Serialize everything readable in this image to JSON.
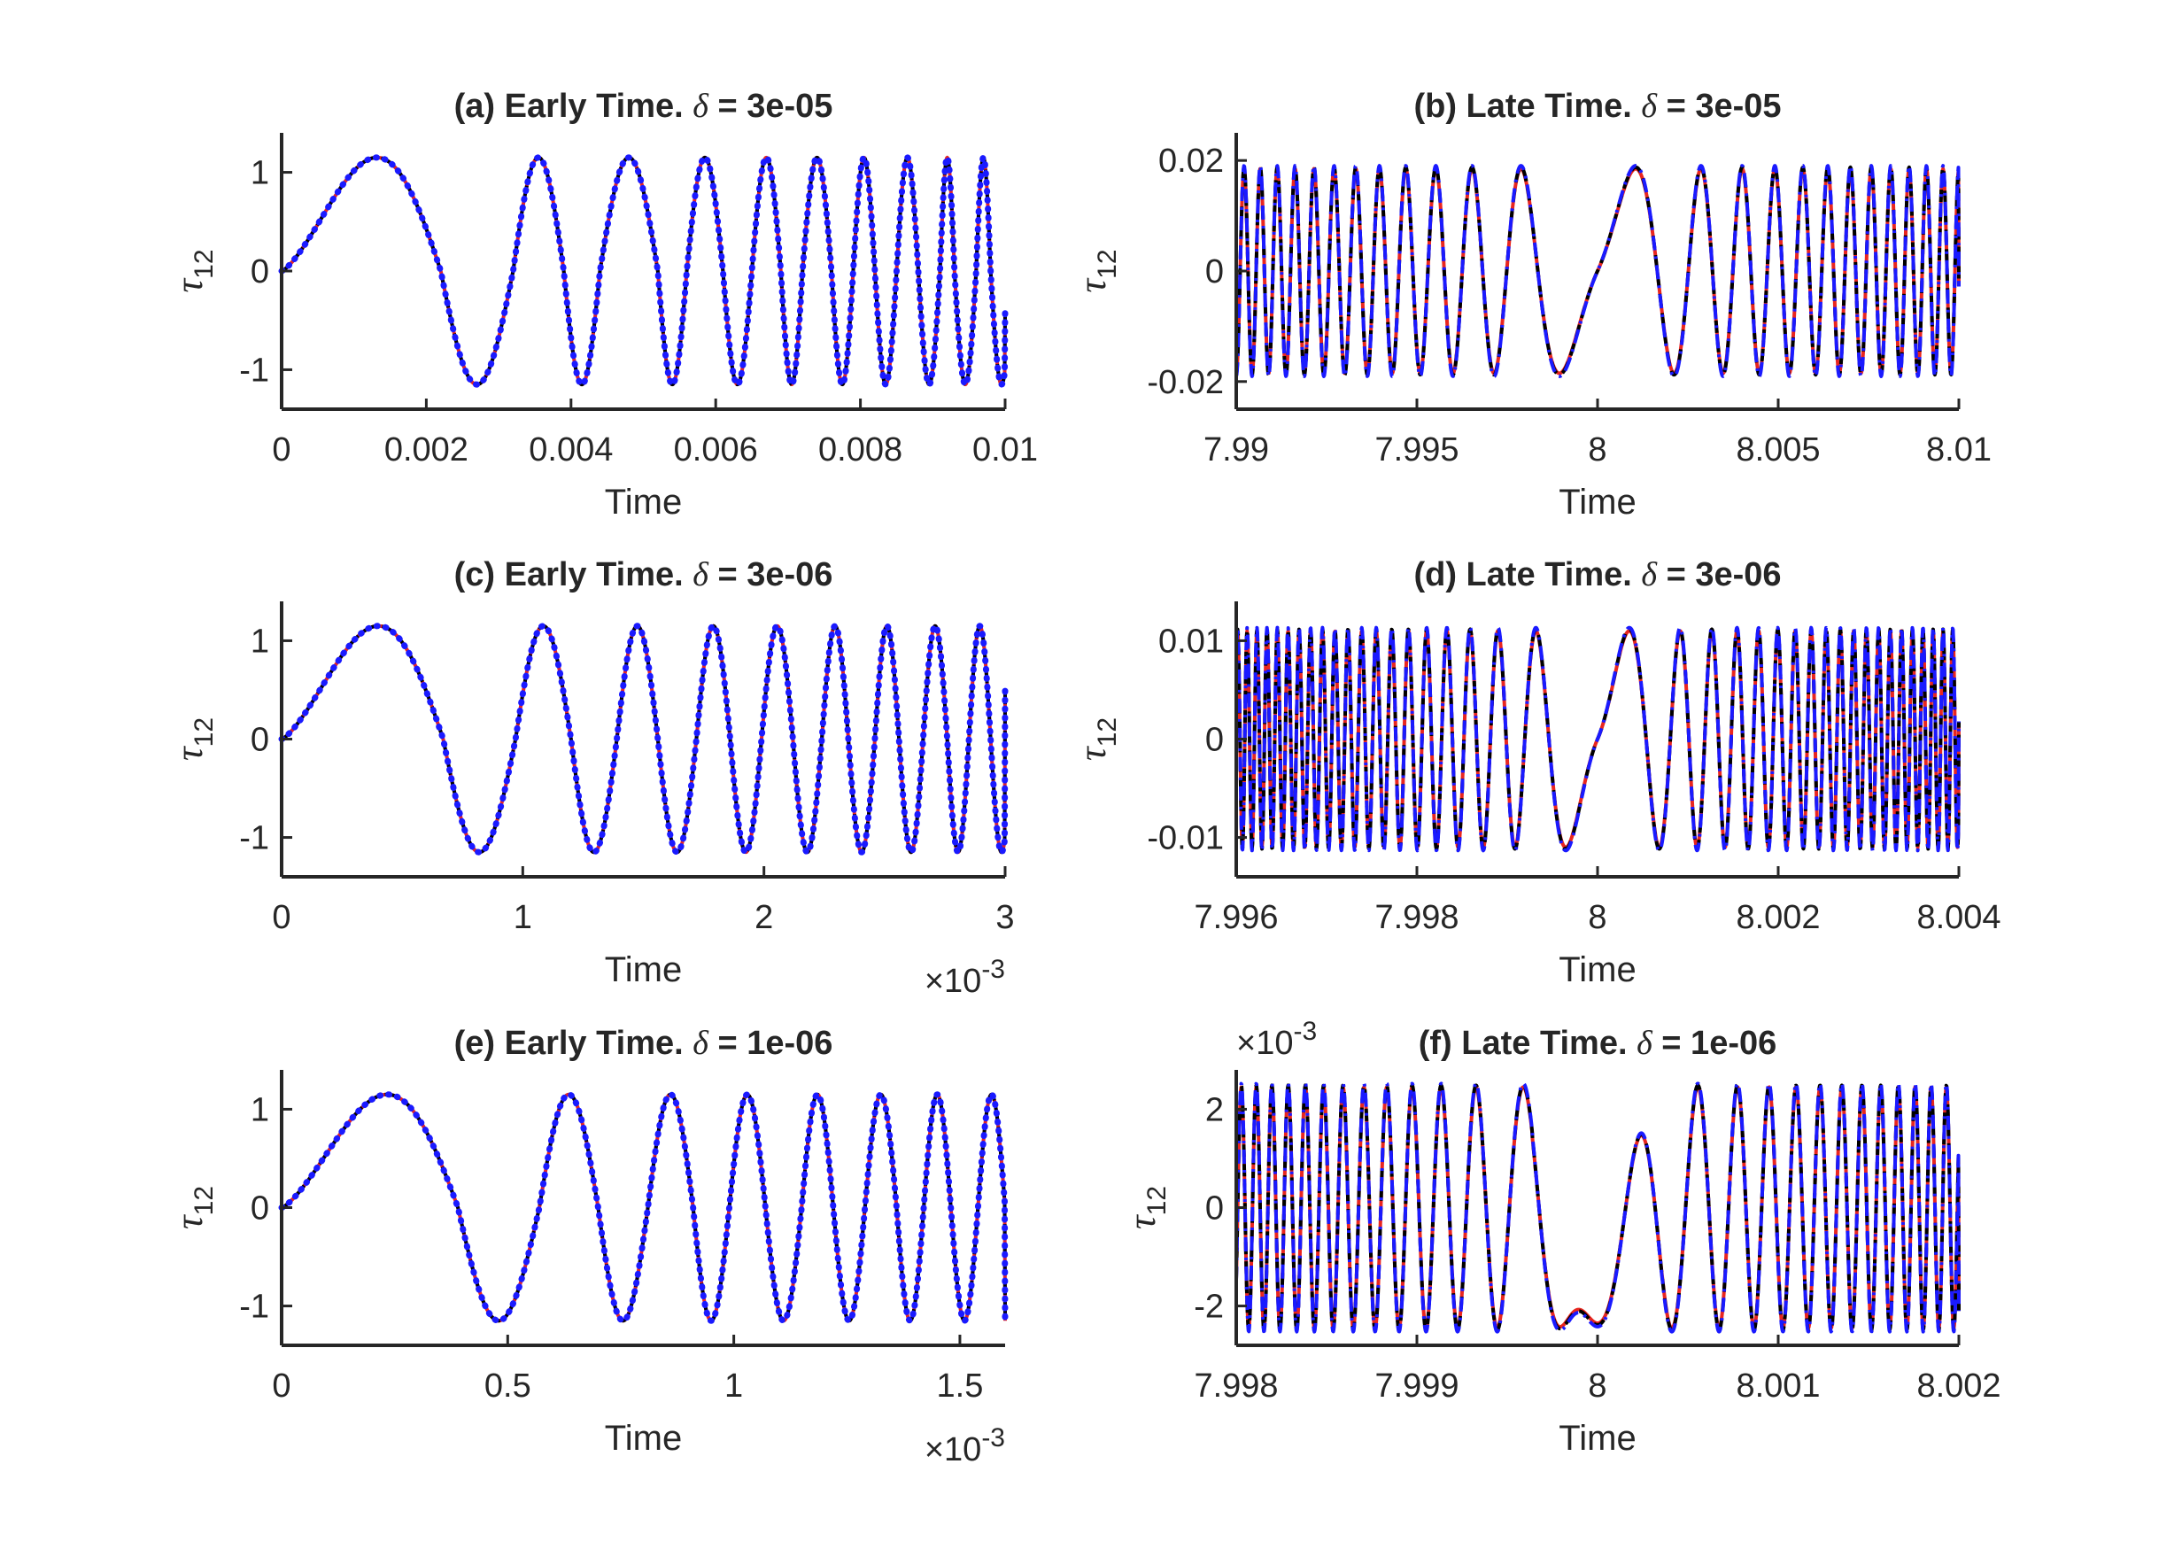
{
  "chart_data": [
    {
      "id": "a",
      "type": "line",
      "title": "(a) Early Time. ",
      "delta_symbol": "δ",
      "delta_value": " = 3e-05",
      "xlabel": "Time",
      "ylabel": "τ",
      "ylabel_sub": "12",
      "xlim": [
        0,
        0.01
      ],
      "ylim": [
        -1.4,
        1.4
      ],
      "xticks": [
        0,
        0.002,
        0.004,
        0.006,
        0.008,
        0.01
      ],
      "xtick_labels": [
        "0",
        "0.002",
        "0.004",
        "0.006",
        "0.008",
        "0.01"
      ],
      "yticks": [
        -1,
        0,
        1
      ],
      "ytick_labels": [
        "-1",
        "0",
        "1"
      ],
      "x_exponent": "",
      "y_exponent": "",
      "amplitude": 1.15,
      "oscillation": "chirp",
      "zero_crossings": [
        0,
        0.0022,
        0.0032,
        0.0039,
        0.0044,
        0.0052,
        0.0056,
        0.0061,
        0.0065,
        0.0069,
        0.0072,
        0.0076,
        0.0079,
        0.0082,
        0.0085,
        0.0088,
        0.0091,
        0.0093,
        0.0096,
        0.0098,
        0.0101
      ],
      "end_value": -0.42,
      "series": [
        {
          "color": "#e8261f",
          "style": "solid"
        },
        {
          "color": "#000000",
          "style": "dashed"
        },
        {
          "color": "#1a1aff",
          "style": "dotted"
        }
      ]
    },
    {
      "id": "b",
      "type": "line",
      "title": "(b) Late Time. ",
      "delta_symbol": "δ",
      "delta_value": " = 3e-05",
      "xlabel": "Time",
      "ylabel": "τ",
      "ylabel_sub": "12",
      "xlim": [
        7.99,
        8.01
      ],
      "ylim": [
        -0.025,
        0.025
      ],
      "xticks": [
        7.99,
        7.995,
        8,
        8.005,
        8.01
      ],
      "xtick_labels": [
        "7.99",
        "7.995",
        "8",
        "8.005",
        "8.01"
      ],
      "yticks": [
        -0.02,
        0,
        0.02
      ],
      "ytick_labels": [
        "-0.02",
        "0",
        "0.02"
      ],
      "x_exponent": "",
      "y_exponent": "",
      "amplitude": 0.0185,
      "center": 8.0,
      "oscillation": "symmetric_chirp",
      "end_value": -0.0028,
      "series": [
        {
          "color": "#e8261f",
          "style": "solid"
        },
        {
          "color": "#000000",
          "style": "dashed"
        },
        {
          "color": "#1a1aff",
          "style": "dashdot"
        }
      ]
    },
    {
      "id": "c",
      "type": "line",
      "title": "(c) Early Time. ",
      "delta_symbol": "δ",
      "delta_value": " = 3e-06",
      "xlabel": "Time",
      "ylabel": "τ",
      "ylabel_sub": "12",
      "xlim": [
        0,
        3
      ],
      "ylim": [
        -1.4,
        1.4
      ],
      "xticks": [
        0,
        1,
        2,
        3
      ],
      "xtick_labels": [
        "0",
        "1",
        "2",
        "3"
      ],
      "yticks": [
        -1,
        0,
        1
      ],
      "ytick_labels": [
        "-1",
        "0",
        "1"
      ],
      "x_exponent": "×10",
      "x_exponent_power": "-3",
      "y_exponent": "",
      "amplitude": 1.15,
      "oscillation": "chirp",
      "zero_crossings": [
        0,
        0.67,
        0.97,
        1.2,
        1.39,
        1.56,
        1.72,
        1.86,
        1.99,
        2.12,
        2.24,
        2.35,
        2.46,
        2.56,
        2.66,
        2.76,
        2.85,
        2.94,
        3.03
      ],
      "end_value": 0.5,
      "series": [
        {
          "color": "#e8261f",
          "style": "solid"
        },
        {
          "color": "#000000",
          "style": "dashed"
        },
        {
          "color": "#1a1aff",
          "style": "dotted"
        }
      ]
    },
    {
      "id": "d",
      "type": "line",
      "title": "(d) Late Time. ",
      "delta_symbol": "δ",
      "delta_value": " = 3e-06",
      "xlabel": "Time",
      "ylabel": "τ",
      "ylabel_sub": "12",
      "xlim": [
        7.996,
        8.004
      ],
      "ylim": [
        -0.014,
        0.014
      ],
      "xticks": [
        7.996,
        7.998,
        8,
        8.002,
        8.004
      ],
      "xtick_labels": [
        "7.996",
        "7.998",
        "8",
        "8.002",
        "8.004"
      ],
      "yticks": [
        -0.01,
        0,
        0.01
      ],
      "ytick_labels": [
        "-0.01",
        "0",
        "0.01"
      ],
      "x_exponent": "",
      "y_exponent": "",
      "amplitude": 0.011,
      "center": 8.0,
      "oscillation": "symmetric_chirp",
      "end_value": 0.0018,
      "series": [
        {
          "color": "#e8261f",
          "style": "solid"
        },
        {
          "color": "#000000",
          "style": "dashed"
        },
        {
          "color": "#1a1aff",
          "style": "dashdot"
        }
      ]
    },
    {
      "id": "e",
      "type": "line",
      "title": "(e) Early Time. ",
      "delta_symbol": "δ",
      "delta_value": " = 1e-06",
      "xlabel": "Time",
      "ylabel": "τ",
      "ylabel_sub": "12",
      "xlim": [
        0,
        1.6
      ],
      "ylim": [
        -1.4,
        1.4
      ],
      "xticks": [
        0,
        0.5,
        1,
        1.5
      ],
      "xtick_labels": [
        "0",
        "0.5",
        "1",
        "1.5"
      ],
      "yticks": [
        -1,
        0,
        1
      ],
      "ytick_labels": [
        "-1",
        "0",
        "1"
      ],
      "x_exponent": "×10",
      "x_exponent_power": "-3",
      "y_exponent": "",
      "amplitude": 1.15,
      "oscillation": "chirp",
      "zero_crossings": [
        0,
        0.39,
        0.57,
        0.7,
        0.81,
        0.91,
        0.99,
        1.07,
        1.15,
        1.22,
        1.29,
        1.36,
        1.42,
        1.48,
        1.54,
        1.6
      ],
      "end_value": -1.15,
      "series": [
        {
          "color": "#e8261f",
          "style": "solid"
        },
        {
          "color": "#000000",
          "style": "dashed"
        },
        {
          "color": "#1a1aff",
          "style": "dotted"
        }
      ]
    },
    {
      "id": "f",
      "type": "line",
      "title": "(f) Late Time. ",
      "delta_symbol": "δ",
      "delta_value": " = 1e-06",
      "xlabel": "Time",
      "ylabel": "τ",
      "ylabel_sub": "12",
      "xlim": [
        7.998,
        8.002
      ],
      "ylim": [
        -2.8,
        2.8
      ],
      "xticks": [
        7.998,
        7.999,
        8,
        8.001,
        8.002
      ],
      "xtick_labels": [
        "7.998",
        "7.999",
        "8",
        "8.001",
        "8.002"
      ],
      "yticks": [
        -2,
        0,
        2
      ],
      "ytick_labels": [
        "-2",
        "0",
        "2"
      ],
      "x_exponent": "",
      "y_exponent": "×10",
      "y_exponent_power": "-3",
      "amplitude": 2.45,
      "center": 8.0,
      "plateau": -2.35,
      "oscillation": "symmetric_chirp_plateau",
      "end_value": -2.1,
      "series": [
        {
          "color": "#e8261f",
          "style": "solid"
        },
        {
          "color": "#000000",
          "style": "dashed"
        },
        {
          "color": "#1a1aff",
          "style": "dashdot"
        }
      ]
    }
  ]
}
